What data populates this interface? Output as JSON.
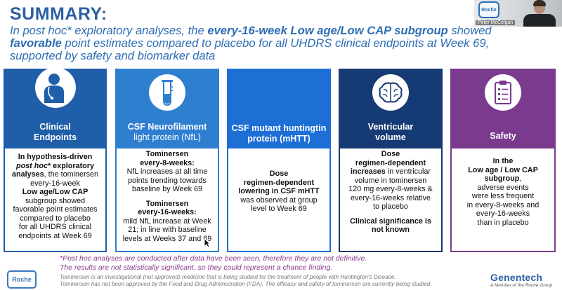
{
  "header": {
    "title": "SUMMARY:",
    "subtitle_1": "In post hoc* exploratory analyses, the ",
    "subtitle_bold_1": "every-16-week Low age/Low CAP subgroup",
    "subtitle_2": " showed ",
    "subtitle_bold_2": "favorable",
    "subtitle_3": " point estimates compared to placebo for all UHDRS clinical endpoints at Week 69, supported by safety and biomarker data"
  },
  "video": {
    "presenter_name": "Peter McColgan",
    "logo_text": "Roche"
  },
  "cards": [
    {
      "title_lines": [
        "Clinical",
        "Endpoints"
      ],
      "icon": "clinician-icon",
      "color": "#1f5ea8",
      "body": {
        "l1_bold": "In hypothesis-driven",
        "l2_bold_italic": "post hoc",
        "l2_bold": "* exploratory",
        "l3_bold": "analyses",
        "l3": ", the tominersen",
        "l4": "every-16-week",
        "l5_bold": "Low age/Low CAP",
        "l6": "subgroup showed",
        "l7": "favorable point estimates",
        "l8": "compared to placebo",
        "l9": "for all UHDRS clinical",
        "l10": "endpoints at Week 69"
      }
    },
    {
      "title_lines": [
        "CSF Neurofilament",
        "light protein (NfL)"
      ],
      "icon": "test-tube-icon",
      "color": "#2f7fd1",
      "body": {
        "l1_bold": "Tominersen",
        "l2_bold": "every-8-weeks:",
        "l3": "NfL increases at all time",
        "l4": "points trending towards",
        "l5": "baseline by Week 69",
        "l6_bold": "Tominersen",
        "l7_bold": "every-16-weeks:",
        "l8": "mild NfL increase at Week",
        "l9": "21; in line with baseline",
        "l10": "levels at Weeks 37 and 69"
      }
    },
    {
      "title_lines": [
        "CSF mutant huntingtin",
        "protein (mHTT)"
      ],
      "icon": "",
      "color": "#1d6fd6",
      "body": {
        "l1_bold": "Dose",
        "l2_bold": "regimen-dependent",
        "l3_bold": "lowering in CSF mHTT",
        "l4": "was observed at group",
        "l5": "level to Week 69"
      }
    },
    {
      "title_lines": [
        "Ventricular",
        "volume"
      ],
      "icon": "brain-icon",
      "color": "#163a73",
      "body": {
        "l1_bold": "Dose",
        "l2_bold": "regimen-dependent",
        "l3_bold": "increases",
        "l3": " in ventricular",
        "l4": "volume in tominersen",
        "l5": "120 mg every-8-weeks &",
        "l6": "every-16-weeks relative",
        "l7": "to placebo",
        "l8_bold": "Clinical significance is",
        "l9_bold": "not known"
      }
    },
    {
      "title_lines": [
        "Safety"
      ],
      "icon": "clipboard-checklist-icon",
      "color": "#7a3a8e",
      "body": {
        "l1_bold": "In  the",
        "l2_bold": "Low age / Low CAP",
        "l3_bold": "subgroup",
        "l3": ",",
        "l4": "adverse events",
        "l5": "were less frequent",
        "l6": "in every-8-weeks and",
        "l7": "every-16-weeks",
        "l8": "than in placebo"
      }
    }
  ],
  "footnote": {
    "line1": "*Post hoc analyses are conducted after data have been seen, therefore they are not definitive.",
    "line2": "The results are not statistically significant, so they could represent a chance finding."
  },
  "legal": {
    "line1": "Tominersen is an investigational (not approved) medicine that is being studied for the treatment of people with Huntington's Disease.",
    "line2": "Tominersen has not been approved by the Food and Drug Administration (FDA). The efficacy and safety of tominersen are currently being studied."
  },
  "logos": {
    "roche": "Roche",
    "genentech": "Genentech",
    "genentech_sub": "A Member of the Roche Group"
  }
}
